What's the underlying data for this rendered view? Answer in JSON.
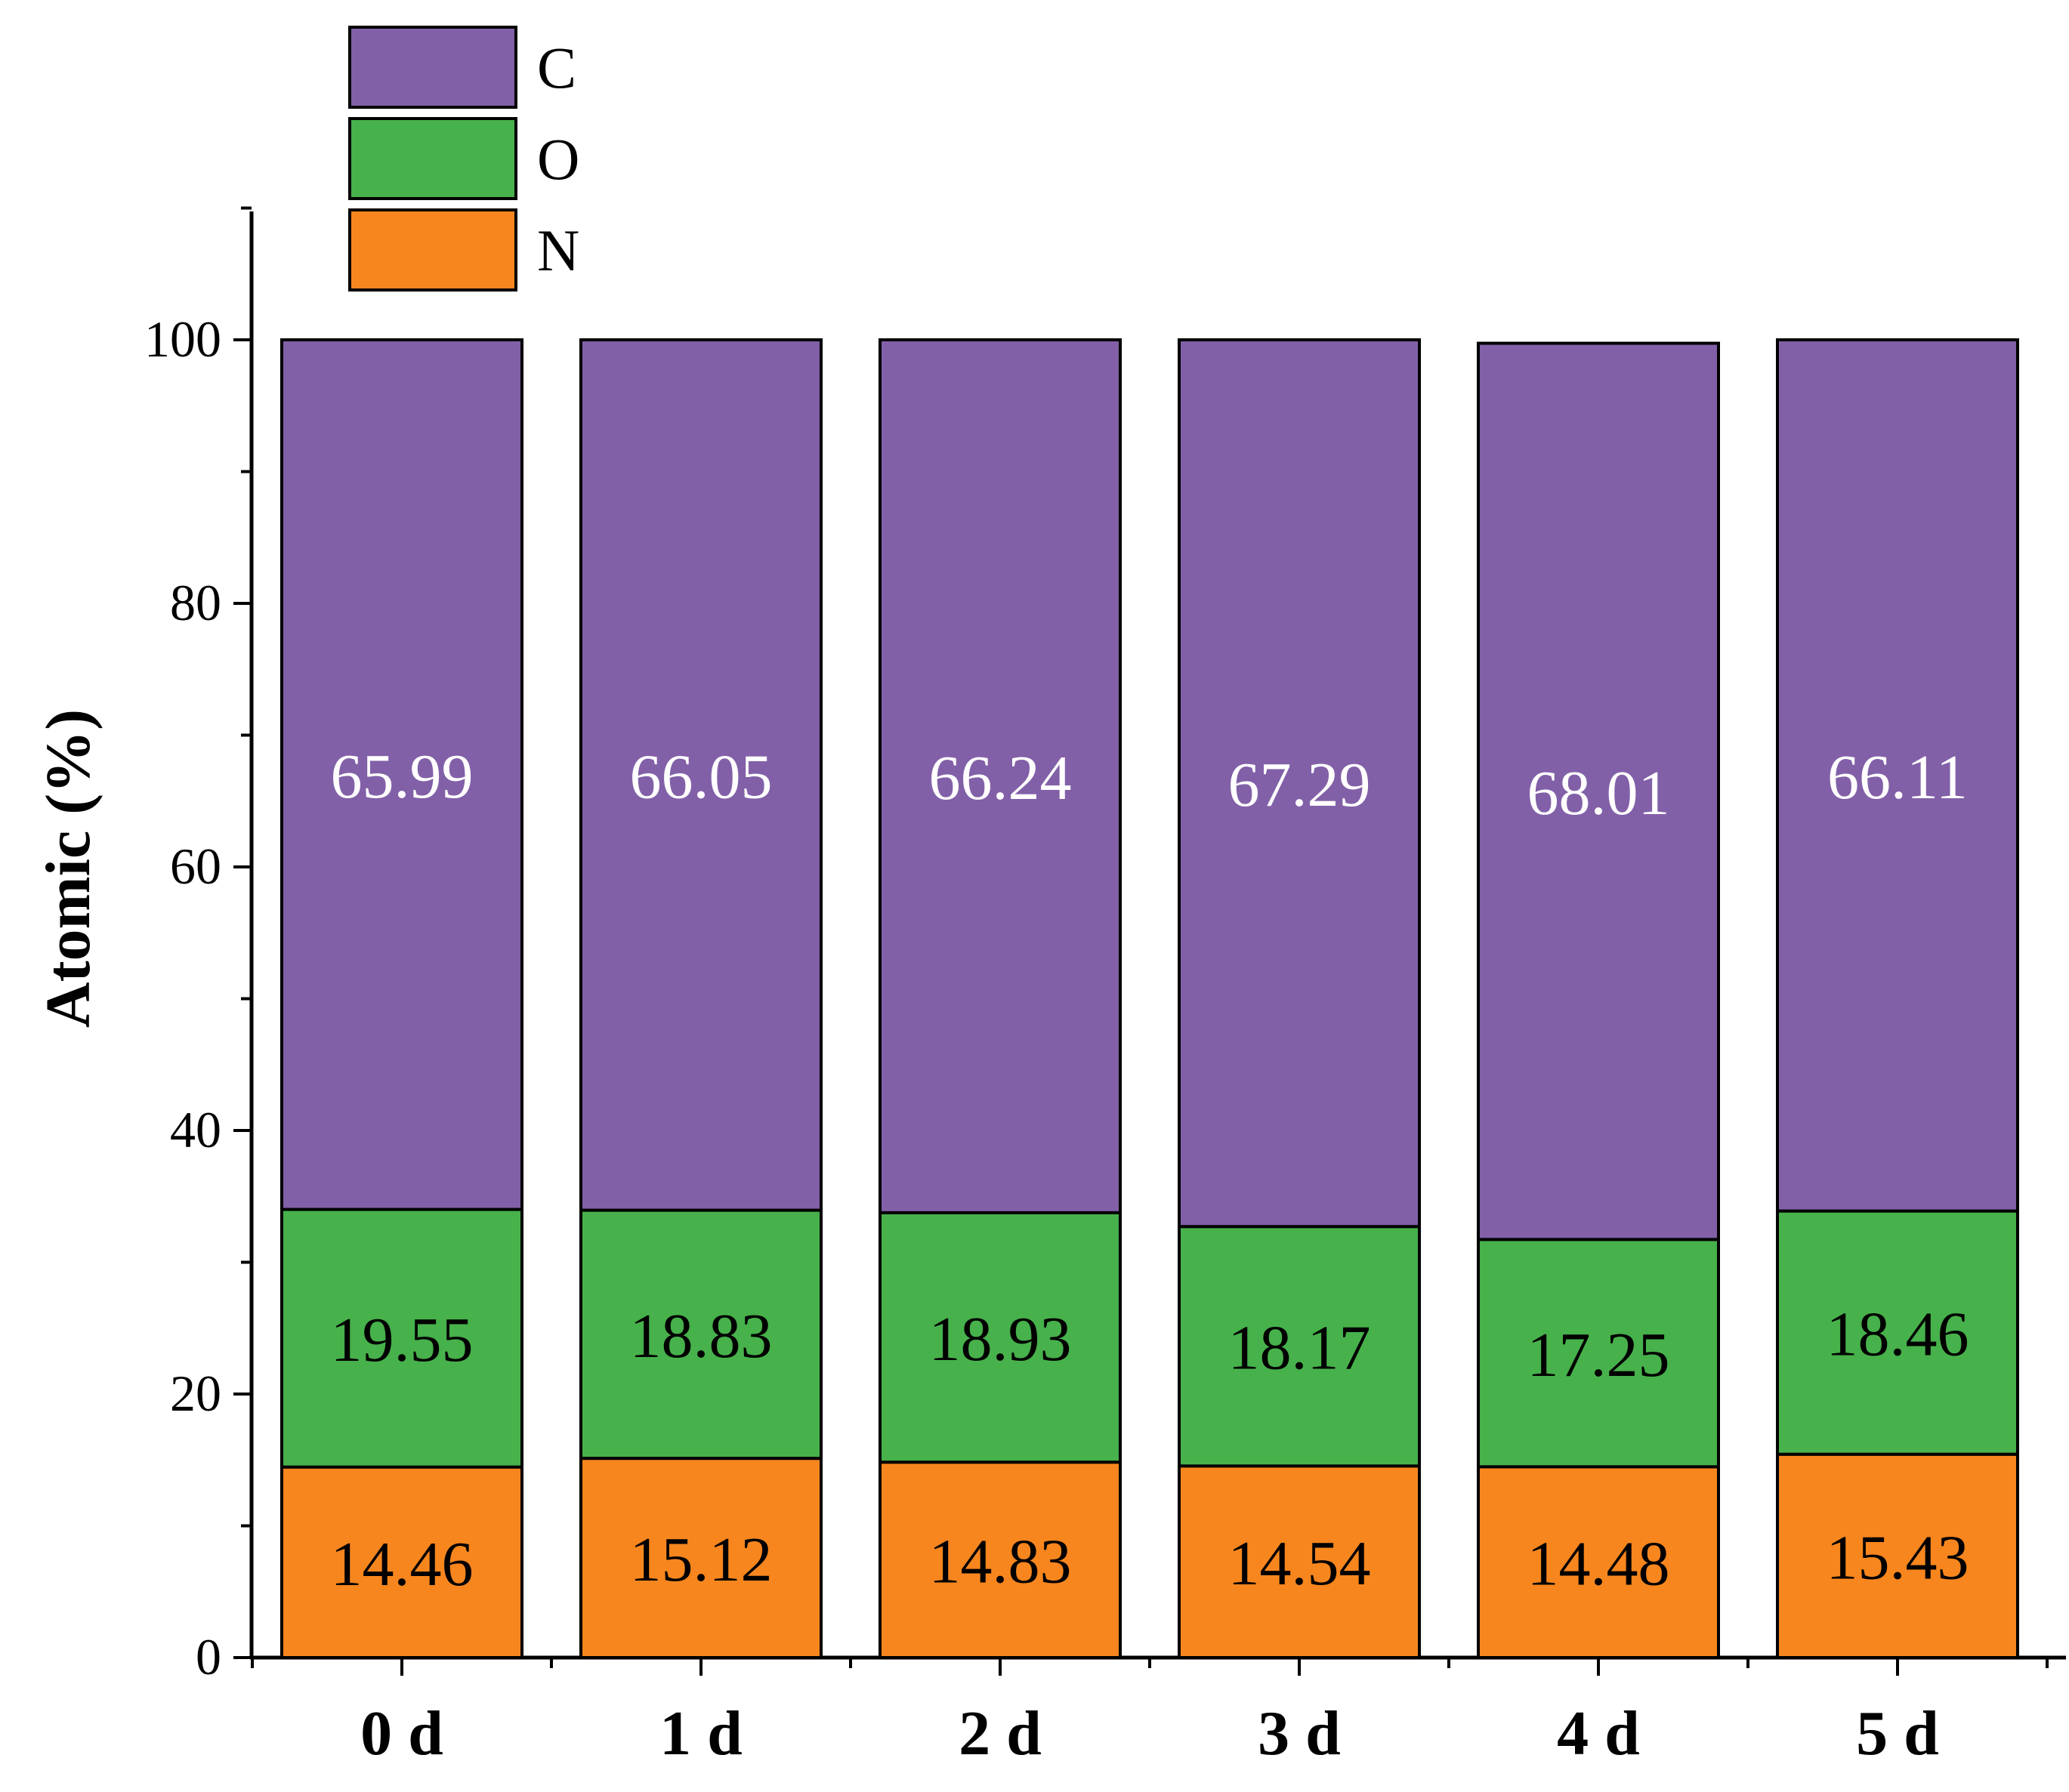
{
  "chart_data": {
    "type": "bar",
    "stacked": true,
    "title": "",
    "xlabel": "",
    "ylabel": "Atomic (%)",
    "ylim": [
      0,
      110
    ],
    "yticks": [
      0,
      20,
      40,
      60,
      80,
      100
    ],
    "ytick_labels": [
      "0",
      "20",
      "40",
      "60",
      "80",
      "100"
    ],
    "minor_ticks": true,
    "grid": false,
    "categories": [
      "0 d",
      "1 d",
      "2 d",
      "3 d",
      "4 d",
      "5 d"
    ],
    "series": [
      {
        "name": "N",
        "color": "#f7861e",
        "label_color": "#000000",
        "values": [
          14.46,
          15.12,
          14.83,
          14.54,
          14.48,
          15.43
        ],
        "labels": [
          "14.46",
          "15.12",
          "14.83",
          "14.54",
          "14.48",
          "15.43"
        ]
      },
      {
        "name": "O",
        "color": "#47b14b",
        "label_color": "#000000",
        "values": [
          19.55,
          18.83,
          18.93,
          18.17,
          17.25,
          18.46
        ],
        "labels": [
          "19.55",
          "18.83",
          "18.93",
          "18.17",
          "17.25",
          "18.46"
        ]
      },
      {
        "name": "C",
        "color": "#8260a8",
        "label_color": "#ffffff",
        "values": [
          65.99,
          66.05,
          66.24,
          67.29,
          68.01,
          66.11
        ],
        "labels": [
          "65.99",
          "66.05",
          "66.24",
          "67.29",
          "68.01",
          "66.11"
        ]
      }
    ],
    "legend": {
      "position": "top-left",
      "order": [
        "C",
        "O",
        "N"
      ]
    }
  }
}
